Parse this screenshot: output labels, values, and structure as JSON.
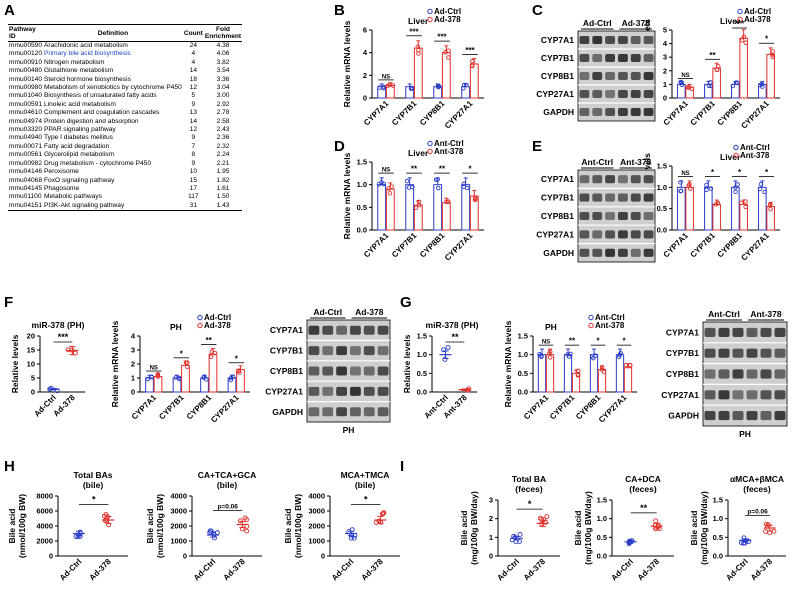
{
  "panels": {
    "A": "A",
    "B": "B",
    "C": "C",
    "D": "D",
    "E": "E",
    "F": "F",
    "G": "G",
    "H": "H",
    "I": "I"
  },
  "table": {
    "headers": [
      "Pathway ID",
      "Definition",
      "Count",
      "Fold Enrichment"
    ],
    "rows": [
      [
        "mmu00590",
        "Arachidonic acid metabolism",
        "24",
        "4.38"
      ],
      [
        "mmu00120",
        "Primary bile acid biosynthesis",
        "4",
        "4.06"
      ],
      [
        "mmu00910",
        "Nitrogen metabolism",
        "4",
        "3.82"
      ],
      [
        "mmu00480",
        "Glutathione metabolism",
        "14",
        "3.54"
      ],
      [
        "mmu00140",
        "Steroid hormone biosynthesis",
        "18",
        "3.36"
      ],
      [
        "mmu00980",
        "Metabolism of xenobiotics by cytochrome P450",
        "12",
        "3.04"
      ],
      [
        "mmu01040",
        "Biosynthesis of unsaturated fatty acids",
        "5",
        "3.00"
      ],
      [
        "mmu00591",
        "Linoleic acid metabolism",
        "9",
        "2.92"
      ],
      [
        "mmu04610",
        "Complement and coagulation cascades",
        "13",
        "2.78"
      ],
      [
        "mmu04974",
        "Protein digestion and absorption",
        "14",
        "2.58"
      ],
      [
        "mmu03320",
        "PPAR signaling pathway",
        "12",
        "2.43"
      ],
      [
        "mmu04940",
        "Type I diabetes mellitus",
        "9",
        "2.36"
      ],
      [
        "mmu00071",
        "Fatty acid degradation",
        "7",
        "2.32"
      ],
      [
        "mmu00561",
        "Glycerolipid metabolism",
        "8",
        "2.24"
      ],
      [
        "mmu00982",
        "Drug metabolism - cytochrome P450",
        "9",
        "2.21"
      ],
      [
        "mmu04146",
        "Peroxisome",
        "10",
        "1.95"
      ],
      [
        "mmu04068",
        "FoxO signaling pathway",
        "15",
        "1.82"
      ],
      [
        "mmu04145",
        "Phagosome",
        "17",
        "1.61"
      ],
      [
        "mmu01100",
        "Metabolic pathways",
        "117",
        "1.50"
      ],
      [
        "mmu04151",
        "PI3K-Akt signaling pathway",
        "31",
        "1.43"
      ]
    ]
  },
  "colors": {
    "ctrl": "#2a3cc8",
    "treat": "#e0302a",
    "band": "#2b2b2b"
  },
  "genes": [
    "CYP7A1",
    "CYP7B1",
    "CYP8B1",
    "CYP27A1"
  ],
  "blot_genes": [
    "CYP7A1",
    "CYP7B1",
    "CYP8B1",
    "CYP27A1",
    "GAPDH"
  ],
  "chart_data": [
    {
      "id": "B",
      "type": "bar",
      "title": "Liver",
      "ylabel": "Relative mRNA levels",
      "ylim": [
        0,
        6
      ],
      "yticks": [
        0,
        2,
        4,
        6
      ],
      "categories": [
        "CYP7A1",
        "CYP7B1",
        "CYP8B1",
        "CYP27A1"
      ],
      "series": [
        {
          "name": "Ad-Ctrl",
          "values": [
            1.0,
            1.0,
            1.0,
            1.0
          ]
        },
        {
          "name": "Ad-378",
          "values": [
            1.1,
            4.4,
            4.0,
            3.0
          ]
        }
      ],
      "significance": [
        "NS",
        "***",
        "***",
        "***"
      ]
    },
    {
      "id": "C",
      "type": "bar",
      "title": "Liver",
      "ylabel": "Relative protein levels",
      "ylim": [
        0,
        5
      ],
      "yticks": [
        0,
        1,
        2,
        3,
        4,
        5
      ],
      "categories": [
        "CYP7A1",
        "CYP7B1",
        "CYP8B1",
        "CYP27A1"
      ],
      "series": [
        {
          "name": "Ad-Ctrl",
          "values": [
            1.0,
            1.0,
            1.0,
            1.0
          ]
        },
        {
          "name": "Ad-378",
          "values": [
            0.8,
            2.2,
            4.4,
            3.2
          ]
        }
      ],
      "significance": [
        "NS",
        "**",
        "***",
        "*"
      ]
    },
    {
      "id": "D",
      "type": "bar",
      "title": "Liver",
      "ylabel": "Relative mRNA levels",
      "ylim": [
        0,
        1.5
      ],
      "yticks": [
        0.0,
        0.5,
        1.0,
        1.5
      ],
      "categories": [
        "CYP7A1",
        "CYP7B1",
        "CYP8B1",
        "CYP27A1"
      ],
      "series": [
        {
          "name": "Ant-Ctrl",
          "values": [
            1.0,
            1.0,
            1.0,
            1.0
          ]
        },
        {
          "name": "Ant-378",
          "values": [
            0.9,
            0.55,
            0.6,
            0.75
          ]
        }
      ],
      "significance": [
        "NS",
        "**",
        "**",
        "*"
      ]
    },
    {
      "id": "E",
      "type": "bar",
      "title": "Liver",
      "ylabel": "Relative protein levels",
      "ylim": [
        0,
        1.5
      ],
      "yticks": [
        0.0,
        0.5,
        1.0,
        1.5
      ],
      "categories": [
        "CYP7A1",
        "CYP7B1",
        "CYP8B1",
        "CYP27A1"
      ],
      "series": [
        {
          "name": "Ant-Ctrl",
          "values": [
            1.0,
            1.0,
            1.0,
            1.0
          ]
        },
        {
          "name": "Ant-378",
          "values": [
            1.0,
            0.6,
            0.6,
            0.55
          ]
        }
      ],
      "significance": [
        "NS",
        "*",
        "*",
        "*"
      ]
    },
    {
      "id": "F1",
      "type": "scatter",
      "title": "miR-378 (PH)",
      "ylabel": "Relative levels",
      "ylim": [
        0,
        20
      ],
      "yticks": [
        0,
        5,
        10,
        15,
        20
      ],
      "categories": [
        "Ad-Ctrl",
        "Ad-378"
      ],
      "series": [
        {
          "name": "Ad-Ctrl",
          "values": [
            1.0
          ]
        },
        {
          "name": "Ad-378",
          "values": [
            14.8
          ]
        }
      ],
      "significance": [
        "***"
      ]
    },
    {
      "id": "F2",
      "type": "bar",
      "title": "PH",
      "ylabel": "Relative mRNA levels",
      "ylim": [
        0,
        4
      ],
      "yticks": [
        0,
        1,
        2,
        3,
        4
      ],
      "categories": [
        "CYP7A1",
        "CYP7B1",
        "CYP8B1",
        "CYP27A1"
      ],
      "series": [
        {
          "name": "Ad-Ctrl",
          "values": [
            1.0,
            1.0,
            1.0,
            1.0
          ]
        },
        {
          "name": "Ad-378",
          "values": [
            1.1,
            1.9,
            2.7,
            1.6
          ]
        }
      ],
      "significance": [
        "NS",
        "*",
        "**",
        "*"
      ]
    },
    {
      "id": "G1",
      "type": "scatter",
      "title": "miR-378 (PH)",
      "ylabel": "Relative levels",
      "ylim": [
        0,
        1.5
      ],
      "yticks": [
        0.0,
        0.5,
        1.0,
        1.5
      ],
      "categories": [
        "Ant-Ctrl",
        "Ant-378"
      ],
      "series": [
        {
          "name": "Ant-Ctrl",
          "values": [
            1.0
          ]
        },
        {
          "name": "Ant-378",
          "values": [
            0.06
          ]
        }
      ],
      "significance": [
        "**"
      ]
    },
    {
      "id": "G2",
      "type": "bar",
      "title": "PH",
      "ylabel": "Relative mRNA levels",
      "ylim": [
        0,
        1.5
      ],
      "yticks": [
        0.0,
        0.5,
        1.0,
        1.5
      ],
      "categories": [
        "CYP7A1",
        "CYP7B1",
        "CYP8B1",
        "CYP27A1"
      ],
      "series": [
        {
          "name": "Ant-Ctrl",
          "values": [
            1.0,
            1.0,
            1.0,
            1.0
          ]
        },
        {
          "name": "Ant-378",
          "values": [
            1.0,
            0.5,
            0.6,
            0.65
          ]
        }
      ],
      "significance": [
        "NS",
        "**",
        "*",
        "*"
      ]
    },
    {
      "id": "H1",
      "type": "scatter",
      "title": "Total BAs",
      "subtitle": "(bile)",
      "ylabel": "Bile acid",
      "ylabel2": "(nmol/100g BW)",
      "ylim": [
        0,
        8000
      ],
      "yticks": [
        0,
        2000,
        4000,
        6000,
        8000
      ],
      "categories": [
        "Ad-Ctrl",
        "Ad-378"
      ],
      "series": [
        {
          "name": "Ad-Ctrl",
          "values": [
            3000
          ]
        },
        {
          "name": "Ad-378",
          "values": [
            4800
          ]
        }
      ],
      "significance": [
        "*"
      ]
    },
    {
      "id": "H2",
      "type": "scatter",
      "title": "CA+TCA+GCA",
      "subtitle": "(bile)",
      "ylabel": "Bile acid",
      "ylabel2": "(nmol/100g BW)",
      "ylim": [
        0,
        4000
      ],
      "yticks": [
        0,
        1000,
        2000,
        3000,
        4000
      ],
      "categories": [
        "Ad-Ctrl",
        "Ad-378"
      ],
      "series": [
        {
          "name": "Ad-Ctrl",
          "values": [
            1400
          ]
        },
        {
          "name": "Ad-378",
          "values": [
            2100
          ]
        }
      ],
      "significance": [
        "p=0.06"
      ]
    },
    {
      "id": "H3",
      "type": "scatter",
      "title": "MCA+TMCA",
      "subtitle": "(bile)",
      "ylabel": "Bile acid",
      "ylabel2": "(nmol/100g BW)",
      "ylim": [
        0,
        4000
      ],
      "yticks": [
        0,
        1000,
        2000,
        3000,
        4000
      ],
      "categories": [
        "Ad-Ctrl",
        "Ad-378"
      ],
      "series": [
        {
          "name": "Ad-Ctrl",
          "values": [
            1500
          ]
        },
        {
          "name": "Ad-378",
          "values": [
            2400
          ]
        }
      ],
      "significance": [
        "*"
      ]
    },
    {
      "id": "I1",
      "type": "scatter",
      "title": "Total BA",
      "subtitle": "(feces)",
      "ylabel": "Bile acid",
      "ylabel2": "(mg/100g BW/day)",
      "ylim": [
        0,
        3
      ],
      "yticks": [
        0,
        1,
        2,
        3
      ],
      "categories": [
        "Ad-Ctrl",
        "Ad-378"
      ],
      "series": [
        {
          "name": "Ad-Ctrl",
          "values": [
            0.95
          ]
        },
        {
          "name": "Ad-378",
          "values": [
            1.75
          ]
        }
      ],
      "significance": [
        "*"
      ]
    },
    {
      "id": "I2",
      "type": "scatter",
      "title": "CA+DCA",
      "subtitle": "(feces)",
      "ylabel": "Bile acid",
      "ylabel2": "(mg/100g BW/day)",
      "ylim": [
        0,
        1.5
      ],
      "yticks": [
        0.0,
        0.5,
        1.0,
        1.5
      ],
      "categories": [
        "Ad-Ctrl",
        "Ad-378"
      ],
      "series": [
        {
          "name": "Ad-Ctrl",
          "values": [
            0.38
          ]
        },
        {
          "name": "Ad-378",
          "values": [
            0.8
          ]
        }
      ],
      "significance": [
        "**"
      ]
    },
    {
      "id": "I3",
      "type": "scatter",
      "title": "αMCA+βMCA",
      "subtitle": "(feces)",
      "ylabel": "Bile acid",
      "ylabel2": "(mg/100g BW/day)",
      "ylim": [
        0,
        1.5
      ],
      "yticks": [
        0.0,
        0.5,
        1.0,
        1.5
      ],
      "categories": [
        "Ad-Ctrl",
        "Ad-378"
      ],
      "series": [
        {
          "name": "Ad-Ctrl",
          "values": [
            0.42
          ]
        },
        {
          "name": "Ad-378",
          "values": [
            0.75
          ]
        }
      ],
      "significance": [
        "p=0.06"
      ]
    }
  ],
  "blots": [
    {
      "id": "C",
      "groups": [
        "Ad-Ctrl",
        "Ad-378"
      ]
    },
    {
      "id": "E",
      "groups": [
        "Ant-Ctrl",
        "Ant-378"
      ]
    },
    {
      "id": "F",
      "groups": [
        "Ad-Ctrl",
        "Ad-378"
      ],
      "caption": "PH"
    },
    {
      "id": "G",
      "groups": [
        "Ant-Ctrl",
        "Ant-378"
      ],
      "caption": "PH"
    }
  ]
}
